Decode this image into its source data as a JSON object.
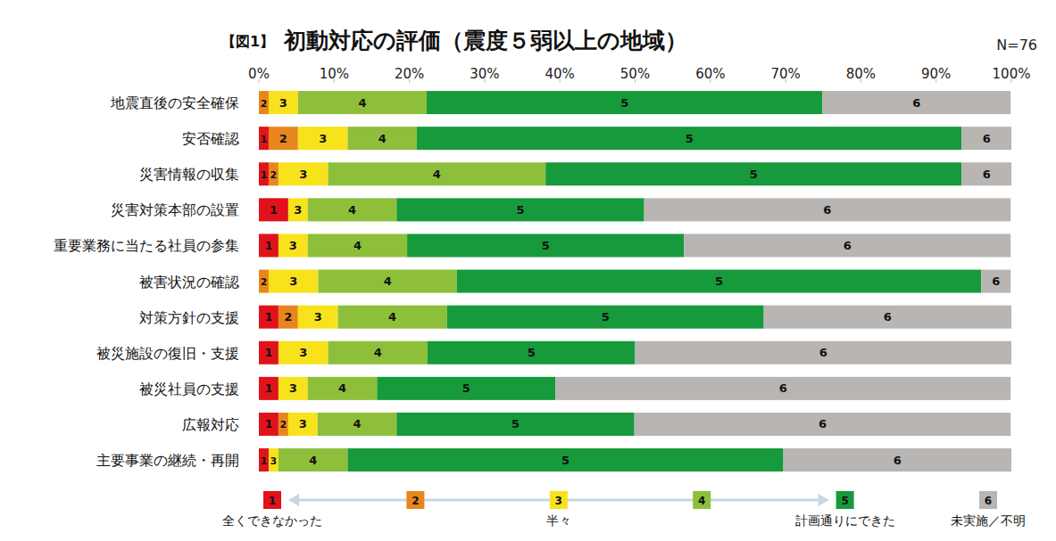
{
  "chart_data": {
    "type": "bar",
    "orientation": "horizontal",
    "stacked": true,
    "grid": false,
    "figure_label": "【図1】",
    "title": "初動対応の評価（震度５弱以上の地域）",
    "subtitle": "N=76",
    "categories": [
      "地震直後の安全確保",
      "安否確認",
      "災害情報の収集",
      "災害対策本部の設置",
      "重要業務に当たる社員の参集",
      "被害状況の確認",
      "対策方針の支援",
      "被災施設の復旧・支援",
      "被災社員の支援",
      "広報対応",
      "主要事業の継続・再開"
    ],
    "series": [
      {
        "name": "1",
        "color": "#e0121b",
        "label": "全くできなかった",
        "values": [
          0,
          1.3,
          1.3,
          3.9,
          2.6,
          0,
          2.6,
          2.6,
          2.6,
          2.6,
          1.3
        ]
      },
      {
        "name": "2",
        "color": "#e8861e",
        "values": [
          1.3,
          3.9,
          1.3,
          0,
          0,
          1.3,
          2.6,
          0,
          0,
          1.3,
          0
        ]
      },
      {
        "name": "3",
        "color": "#f7e21c",
        "label": "半々",
        "values": [
          3.9,
          6.6,
          6.6,
          2.6,
          3.9,
          6.6,
          5.3,
          6.6,
          3.9,
          3.9,
          1.3
        ]
      },
      {
        "name": "4",
        "color": "#8dbf3b",
        "values": [
          17.1,
          9.2,
          28.9,
          11.8,
          13.2,
          18.4,
          14.5,
          13.2,
          9.2,
          10.5,
          9.2
        ]
      },
      {
        "name": "5",
        "color": "#179a3b",
        "label": "計画通りにできた",
        "values": [
          52.6,
          72.4,
          55.3,
          32.9,
          36.8,
          69.7,
          42.1,
          27.6,
          23.7,
          31.6,
          57.9
        ]
      },
      {
        "name": "6",
        "color": "#b8b5b3",
        "label": "未実施／不明",
        "values": [
          25.0,
          6.6,
          6.6,
          48.7,
          43.4,
          3.9,
          32.9,
          50.0,
          60.5,
          50.0,
          30.3
        ]
      }
    ],
    "xlim": [
      0,
      100
    ],
    "xticks": [
      {
        "value": 0,
        "label": "0%"
      },
      {
        "value": 10,
        "label": "10%"
      },
      {
        "value": 20,
        "label": "20%"
      },
      {
        "value": 30,
        "label": "30%"
      },
      {
        "value": 40,
        "label": "40%"
      },
      {
        "value": 50,
        "label": "50%"
      },
      {
        "value": 60,
        "label": "60%"
      },
      {
        "value": 70,
        "label": "70%"
      },
      {
        "value": 80,
        "label": "80%"
      },
      {
        "value": 90,
        "label": "90%"
      },
      {
        "value": 100,
        "label": "100%"
      }
    ],
    "legend": "bottom"
  }
}
